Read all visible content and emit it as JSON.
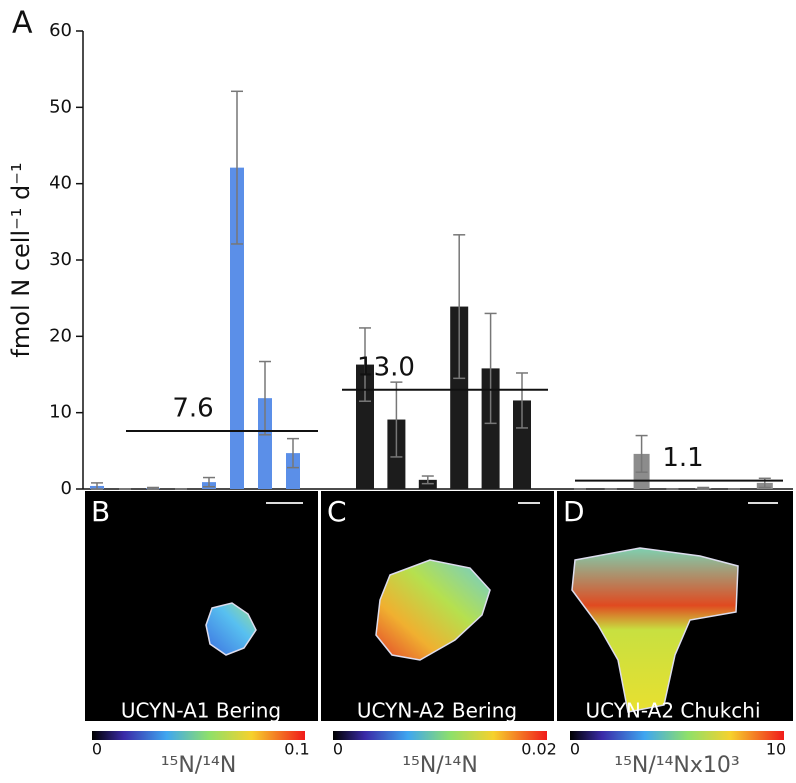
{
  "chart_data": {
    "type": "bar",
    "panel_label": "A",
    "ylabel": "fmol N cell⁻¹ d⁻¹",
    "ylim": [
      0,
      60
    ],
    "yticks": [
      0,
      10,
      20,
      30,
      40,
      50,
      60
    ],
    "series": [
      {
        "color": "#5b8fe8",
        "values": [
          0.4,
          0,
          0.1,
          0,
          0.9,
          42.1,
          11.9,
          4.7
        ],
        "errors": [
          0.4,
          0,
          0.1,
          0,
          0.6,
          10,
          4.8,
          1.9
        ],
        "mean": 7.6,
        "mean_label": "7.6"
      },
      {
        "color": "#1c1c1c",
        "values": [
          16.3,
          9.1,
          1.2,
          23.9,
          15.8,
          11.6
        ],
        "errors": [
          4.8,
          4.9,
          0.5,
          9.4,
          7.2,
          3.6
        ],
        "mean": 13,
        "mean_label": "13.0"
      },
      {
        "color": "#8c8c8c",
        "values": [
          0,
          0,
          4.6,
          0,
          0.1,
          0,
          0.8
        ],
        "errors": [
          0,
          0,
          2.4,
          0,
          0.1,
          0,
          0.6
        ],
        "mean": 1.1,
        "mean_label": "1.1"
      }
    ],
    "panels": [
      {
        "letter": "B",
        "caption": "UCYN-A1 Bering",
        "scale_min": "0",
        "scale_max": "0.1",
        "scale_label": "¹⁵N/¹⁴N"
      },
      {
        "letter": "C",
        "caption": "UCYN-A2 Bering",
        "scale_min": "0",
        "scale_max": "0.02",
        "scale_label": "¹⁵N/¹⁴N"
      },
      {
        "letter": "D",
        "caption": "UCYN-A2 Chukchi",
        "scale_min": "0",
        "scale_max": "10",
        "scale_label": "¹⁵N/¹⁴Nx10³"
      }
    ]
  }
}
